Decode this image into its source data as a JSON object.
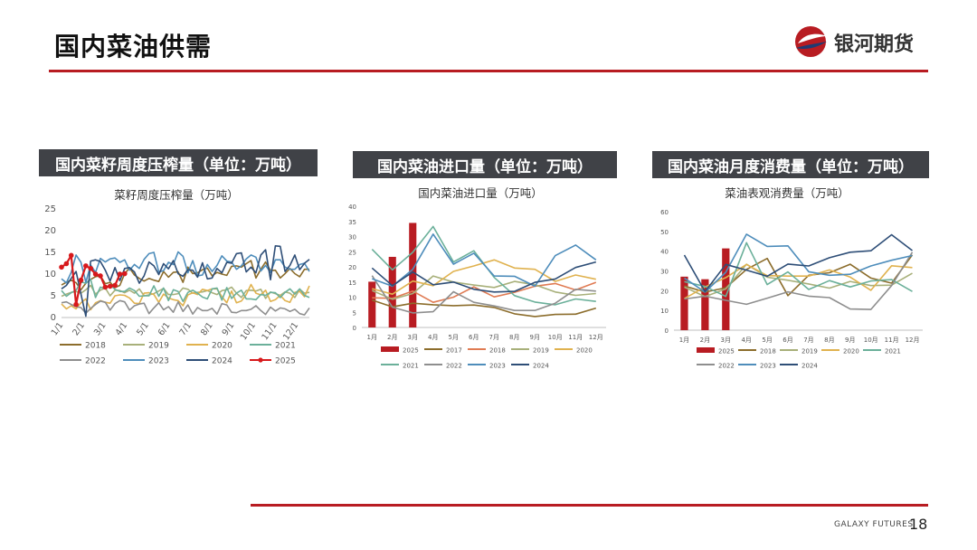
{
  "page": {
    "title": "国内菜油供需",
    "brand": "银河期货",
    "footer_brand": "GALAXY FUTURES",
    "page_number": "18",
    "accent_color": "#b81c22",
    "header_bg": "#404247"
  },
  "panels": [
    {
      "header": "国内菜籽周度压榨量（单位：万吨）"
    },
    {
      "header": "国内菜油进口量（单位：万吨）"
    },
    {
      "header": "国内菜油月度消费量（单位：万吨）"
    }
  ],
  "chart_data": [
    {
      "type": "line",
      "title": "菜籽周度压榨量（万吨）",
      "ylim": [
        0,
        25
      ],
      "yticks": [
        "0",
        "5",
        "10",
        "15",
        "20",
        "25"
      ],
      "x_tick_labels": [
        "1/1",
        "2/1",
        "3/1",
        "4/1",
        "5/1",
        "6/1",
        "7/1",
        "8/1",
        "9/1",
        "10/1",
        "11/1",
        "12/1"
      ],
      "x_count": 52,
      "legend_position": "bottom",
      "series": [
        {
          "name": "2018",
          "color": "#8c6d2c",
          "values": [
            7.5,
            8.1,
            8.6,
            8.0,
            6.4,
            7.9,
            8.8,
            9.4,
            9.6,
            7.8,
            8.1,
            6.9,
            7.4,
            10.1,
            11.4,
            9.8,
            9.0,
            8.4,
            9.0,
            8.6,
            8.3,
            10.6,
            9.3,
            10.4,
            10.5,
            8.1,
            11.6,
            10.1,
            10.3,
            11.0,
            11.4,
            9.6,
            10.4,
            10.0,
            9.7,
            11.8,
            11.9,
            11.6,
            12.4,
            13.1,
            9.1,
            11.1,
            12.8,
            10.8,
            10.9,
            9.1,
            10.1,
            11.3,
            10.1,
            9.4,
            11.1,
            11.1
          ]
        },
        {
          "name": "2019",
          "color": "#a8b07a",
          "values": [
            4.9,
            5.4,
            5.8,
            6.0,
            5.6,
            6.4,
            7.4,
            5.4,
            6.3,
            6.8,
            5.0,
            6.3,
            6.2,
            5.7,
            6.3,
            5.6,
            6.6,
            5.0,
            5.2,
            5.5,
            6.1,
            6.7,
            5.3,
            5.3,
            5.5,
            6.8,
            6.5,
            5.6,
            5.8,
            5.9,
            6.2,
            5.7,
            5.3,
            6.2,
            6.4,
            7.0,
            5.6,
            4.6,
            6.2,
            6.3,
            6.1,
            6.5,
            4.4,
            5.9,
            5.5,
            5.1,
            5.9,
            5.6,
            4.6,
            6.5,
            5.6,
            5.8
          ]
        },
        {
          "name": "2020",
          "color": "#e0b24f",
          "values": [
            3.1,
            2.0,
            2.7,
            2.0,
            3.4,
            4.3,
            1.8,
            3.4,
            3.9,
            3.5,
            3.3,
            5.0,
            5.2,
            5.1,
            4.5,
            3.3,
            3.2,
            5.6,
            5.7,
            5.3,
            3.5,
            5.4,
            4.5,
            4.1,
            3.9,
            2.7,
            5.2,
            5.7,
            5.3,
            6.5,
            6.2,
            6.6,
            6.6,
            4.8,
            3.4,
            6.1,
            3.4,
            3.8,
            5.3,
            7.6,
            5.6,
            5.2,
            6.3,
            3.7,
            4.1,
            5.1,
            3.9,
            3.5,
            5.8,
            6.0,
            4.8,
            7.3
          ]
        },
        {
          "name": "2021",
          "color": "#6bb09a",
          "values": [
            6.2,
            4.9,
            5.7,
            6.3,
            8.2,
            7.9,
            8.8,
            4.6,
            7.0,
            6.6,
            7.5,
            6.5,
            6.0,
            6.0,
            6.8,
            6.2,
            4.9,
            5.0,
            5.0,
            7.3,
            4.9,
            6.8,
            3.9,
            6.4,
            6.0,
            3.7,
            5.8,
            6.3,
            5.6,
            4.7,
            4.3,
            6.6,
            6.8,
            4.0,
            6.9,
            4.4,
            5.6,
            6.3,
            4.3,
            4.3,
            4.1,
            5.3,
            5.1,
            5.8,
            5.7,
            4.6,
            5.8,
            6.6,
            5.4,
            6.6,
            5.1,
            4.6
          ]
        },
        {
          "name": "2022",
          "color": "#8e8e8e",
          "values": [
            3.4,
            3.6,
            3.0,
            2.5,
            2.3,
            1.0,
            2.1,
            3.0,
            3.8,
            3.5,
            1.7,
            3.2,
            3.9,
            3.6,
            1.7,
            2.7,
            3.1,
            3.3,
            0.9,
            2.2,
            3.4,
            1.8,
            2.5,
            1.2,
            3.6,
            1.4,
            2.9,
            0.8,
            2.3,
            1.6,
            1.6,
            2.1,
            0.8,
            3.2,
            2.9,
            1.2,
            1.1,
            1.6,
            1.6,
            1.9,
            2.7,
            1.6,
            0.7,
            2.4,
            1.5,
            2.2,
            2.0,
            1.4,
            1.9,
            0.9,
            0.6,
            2.2
          ]
        },
        {
          "name": "2023",
          "color": "#4e8dbb",
          "values": [
            8.9,
            8.0,
            10.4,
            14.4,
            12.7,
            8.1,
            12.1,
            10.4,
            13.6,
            12.8,
            13.5,
            13.7,
            12.7,
            13.3,
            10.9,
            12.2,
            11.3,
            13.4,
            14.7,
            15.0,
            10.5,
            10.8,
            12.7,
            12.2,
            15.1,
            14.1,
            10.3,
            13.1,
            9.6,
            9.8,
            12.2,
            10.6,
            12.0,
            14.2,
            13.0,
            12.8,
            11.1,
            11.9,
            13.5,
            14.4,
            13.9,
            10.7,
            12.0,
            10.4,
            13.3,
            13.3,
            11.6,
            11.1,
            11.1,
            12.2,
            12.5,
            10.6
          ]
        },
        {
          "name": "2024",
          "color": "#2e4e77",
          "values": [
            6.6,
            7.4,
            9.0,
            10.6,
            5.4,
            0.3,
            13.0,
            13.3,
            12.9,
            10.9,
            8.4,
            11.5,
            8.5,
            11.3,
            11.5,
            10.5,
            7.9,
            9.6,
            12.8,
            11.9,
            9.9,
            12.4,
            11.2,
            13.1,
            10.1,
            9.5,
            11.0,
            10.9,
            9.3,
            12.6,
            8.9,
            9.1,
            11.3,
            10.3,
            12.7,
            12.5,
            14.7,
            14.9,
            10.5,
            11.6,
            10.3,
            14.4,
            15.6,
            8.7,
            16.5,
            16.4,
            10.6,
            12.0,
            14.4,
            11.0,
            12.5,
            13.4
          ]
        },
        {
          "name": "2025",
          "color": "#d7191c",
          "marker": true,
          "values": [
            11.6,
            12.4,
            14.3,
            3.0,
            8.6,
            11.9,
            11.3,
            10.0,
            9.6,
            7.0,
            7.2,
            7.4,
            10.0,
            10.1
          ]
        }
      ]
    },
    {
      "type": "bar+line",
      "title": "国内菜油进口量（万吨）",
      "ylim": [
        0,
        40
      ],
      "yticks": [
        "0",
        "5",
        "10",
        "15",
        "20",
        "25",
        "30",
        "35",
        "40"
      ],
      "categories": [
        "1月",
        "2月",
        "3月",
        "4月",
        "5月",
        "6月",
        "7月",
        "8月",
        "9月",
        "10月",
        "11月",
        "12月"
      ],
      "legend_position": "bottom",
      "bar_series": {
        "name": "2025",
        "color": "#b81c22",
        "values": [
          15.1,
          23.3,
          34.5
        ]
      },
      "series": [
        {
          "name": "2017",
          "color": "#8c6d2c",
          "values": [
            9.0,
            6.8,
            8.0,
            7.5,
            7.2,
            7.4,
            6.6,
            4.5,
            3.6,
            4.3,
            4.4,
            6.4
          ]
        },
        {
          "name": "2018",
          "color": "#e07b53",
          "values": [
            9.8,
            9.6,
            12.0,
            8.3,
            10.0,
            13.4,
            10.1,
            11.6,
            13.6,
            14.5,
            12.4,
            14.9
          ]
        },
        {
          "name": "2019",
          "color": "#a8b07a",
          "values": [
            12.2,
            9.3,
            11.2,
            17.0,
            15.0,
            14.0,
            13.2,
            15.2,
            14.1,
            11.7,
            10.6,
            11.2
          ]
        },
        {
          "name": "2020",
          "color": "#e0b24f",
          "values": [
            12.8,
            11.0,
            15.3,
            13.8,
            18.5,
            20.3,
            22.3,
            19.6,
            19.2,
            15.2,
            17.3,
            15.9
          ]
        },
        {
          "name": "2021",
          "color": "#6bb09a",
          "values": [
            25.8,
            19.0,
            24.8,
            33.3,
            21.6,
            25.3,
            16.5,
            10.5,
            8.4,
            7.5,
            9.4,
            8.6
          ]
        },
        {
          "name": "2022",
          "color": "#8e8e8e",
          "values": [
            17.1,
            6.7,
            4.8,
            5.2,
            11.8,
            8.3,
            7.1,
            5.6,
            5.6,
            8.0,
            12.6,
            12.0
          ]
        },
        {
          "name": "2023",
          "color": "#4e8dbb",
          "values": [
            16.1,
            13.6,
            19.2,
            30.8,
            20.9,
            24.5,
            17.0,
            16.9,
            13.6,
            23.7,
            27.2,
            22.3
          ]
        },
        {
          "name": "2024",
          "color": "#2e4e77",
          "values": [
            19.6,
            13.8,
            18.3,
            14.1,
            15.0,
            12.6,
            11.7,
            11.9,
            14.9,
            16.0,
            19.8,
            21.6
          ]
        }
      ]
    },
    {
      "type": "bar+line",
      "title": "菜油表观消费量（万吨）",
      "ylim": [
        0,
        60
      ],
      "yticks": [
        "0",
        "10",
        "20",
        "30",
        "40",
        "50",
        "60"
      ],
      "categories": [
        "1月",
        "2月",
        "3月",
        "4月",
        "5月",
        "6月",
        "7月",
        "8月",
        "9月",
        "10月",
        "11月",
        "12月"
      ],
      "legend_position": "bottom",
      "bar_series": {
        "name": "2025",
        "color": "#b81c22",
        "values": [
          27.1,
          25.8,
          41.4
        ]
      },
      "series": [
        {
          "name": "2018",
          "color": "#8c6d2c",
          "values": [
            22.4,
            19.3,
            21.5,
            30.8,
            36.3,
            17.5,
            27.8,
            29.1,
            33.4,
            26.4,
            23.8,
            38.1
          ]
        },
        {
          "name": "2019",
          "color": "#a8b07a",
          "values": [
            21.8,
            17.0,
            20.9,
            33.4,
            26.8,
            25.3,
            23.4,
            21.3,
            24.7,
            22.6,
            22.8,
            28.8
          ]
        },
        {
          "name": "2020",
          "color": "#e0b24f",
          "values": [
            16.0,
            21.9,
            26.6,
            33.3,
            27.6,
            27.4,
            27.4,
            30.5,
            26.9,
            20.2,
            32.6,
            31.7
          ]
        },
        {
          "name": "2021",
          "color": "#6bb09a",
          "values": [
            24.6,
            22.1,
            17.1,
            44.3,
            23.1,
            29.5,
            20.6,
            25.1,
            21.9,
            24.9,
            25.6,
            19.6
          ]
        },
        {
          "name": "2022",
          "color": "#8e8e8e",
          "values": [
            15.8,
            17.2,
            15.1,
            13.1,
            16.2,
            19.4,
            17.2,
            16.5,
            10.7,
            10.5,
            22.6,
            39.5
          ]
        },
        {
          "name": "2023",
          "color": "#4e8dbb",
          "values": [
            26.4,
            19.3,
            29.3,
            48.6,
            42.4,
            42.7,
            29.6,
            27.8,
            28.3,
            32.5,
            35.4,
            37.8
          ]
        },
        {
          "name": "2024",
          "color": "#2e4e77",
          "values": [
            38.0,
            19.5,
            33.3,
            30.4,
            27.3,
            33.5,
            32.5,
            36.7,
            39.5,
            40.2,
            48.3,
            40.3
          ]
        }
      ]
    }
  ]
}
